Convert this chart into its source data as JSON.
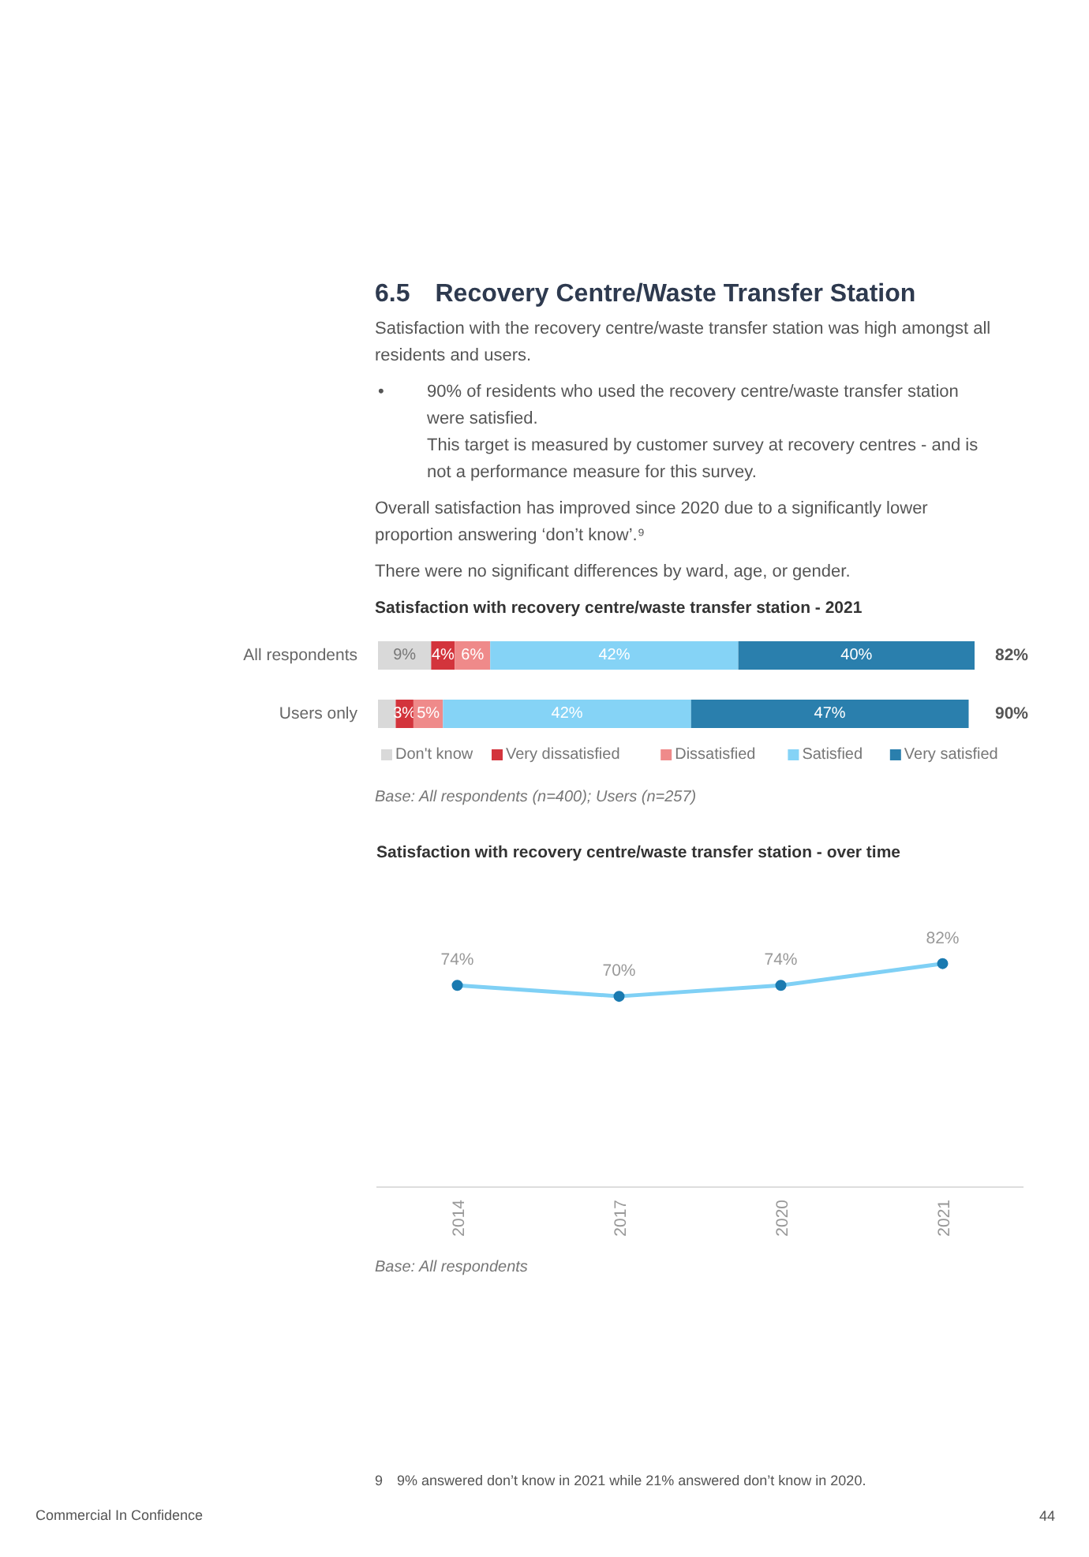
{
  "chart_data": [
    {
      "type": "bar",
      "title": "Satisfaction with recovery centre/waste transfer station - 2021",
      "orientation": "horizontal",
      "stacked": true,
      "legend": "bottom",
      "grid": false,
      "categories": [
        "All respondents",
        "Users only"
      ],
      "series": [
        {
          "name": "Don't know",
          "color": "#d9d9d9",
          "values": [
            9,
            3
          ],
          "value_labels": [
            "9%",
            null
          ]
        },
        {
          "name": "Very dissatisfied",
          "color": "#d3343c",
          "values": [
            4,
            3
          ],
          "value_labels": [
            "4%",
            "3%"
          ]
        },
        {
          "name": "Dissatisfied",
          "color": "#ef8a8a",
          "values": [
            6,
            5
          ],
          "value_labels": [
            "6%",
            "5%"
          ]
        },
        {
          "name": "Satisfied",
          "color": "#85d3f6",
          "values": [
            42,
            42
          ],
          "value_labels": [
            "42%",
            "42%"
          ]
        },
        {
          "name": "Very satisfied",
          "color": "#2a7fad",
          "values": [
            40,
            47
          ],
          "value_labels": [
            "40%",
            "47%"
          ]
        }
      ],
      "annotations": [
        "6.5 Recovery Centre/Waste Transfer Station",
        "Satisfaction with the recovery centre/waste transfer station was high amongst all residents and users.",
        "• 90% of residents who used the recovery centre/waste transfer station were satisfied.",
        "This target is measured by customer survey at recovery centres - and is not a performance measure for this survey.",
        "Overall satisfaction has improved since 2020 due to a significantly lower proportion answering ‘don’t know’.⁹",
        "There were no significant differences by ward, age, or gender.",
        "82%",
        "90%",
        "Base: All respondents (n=400); Users (n=257)"
      ]
    },
    {
      "type": "line",
      "title": "Satisfaction with recovery centre/waste transfer station - over time",
      "grid": false,
      "marker": "circle",
      "categories": [
        "2014",
        "2017",
        "2020",
        "2021"
      ],
      "series": [
        {
          "color": "#7fd0f5",
          "values": [
            74,
            70,
            74,
            82
          ],
          "value_labels": [
            "74%",
            "70%",
            "74%",
            "82%"
          ]
        }
      ],
      "annotations": [
        "Base: All respondents",
        "9 9% answered don’t know in 2021 while 21% answered don’t know in 2020.",
        "Commercial In Confidence",
        "44"
      ]
    }
  ]
}
